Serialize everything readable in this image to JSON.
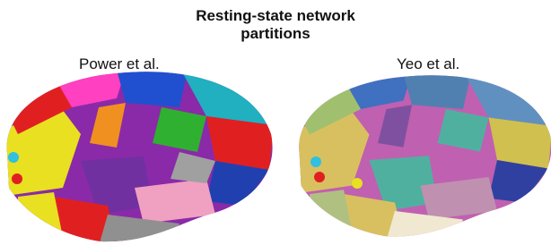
{
  "figure": {
    "title": "Resting-state network partitions",
    "panels": [
      {
        "label": "Power et al."
      },
      {
        "label": "Yeo et al."
      }
    ]
  }
}
